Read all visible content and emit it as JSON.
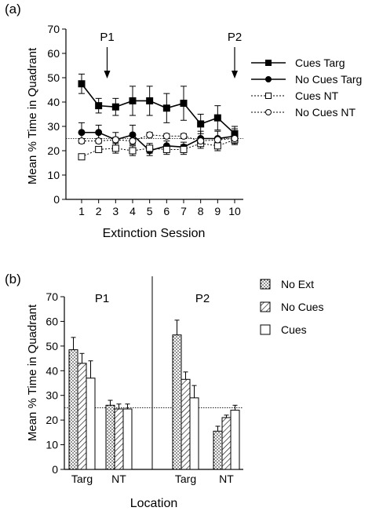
{
  "chart_data": [
    {
      "panel_label": "(a)",
      "type": "line",
      "xlabel": "Extinction Session",
      "ylabel": "Mean % Time in Quadrant",
      "x": [
        1,
        2,
        3,
        4,
        5,
        6,
        7,
        8,
        9,
        10
      ],
      "xlim": [
        1,
        10
      ],
      "ylim": [
        0,
        70
      ],
      "yticks": [
        0,
        10,
        20,
        30,
        40,
        50,
        60,
        70
      ],
      "reference_line": 25,
      "annotations": [
        {
          "label": "P1",
          "x": 2.5
        },
        {
          "label": "P2",
          "x": 10
        }
      ],
      "legend_position": "right",
      "series": [
        {
          "name": "Cues Targ",
          "line": "solid",
          "marker": "filled-square",
          "values": [
            47.5,
            38.5,
            38,
            40.5,
            40.5,
            37.5,
            39.5,
            31,
            33.5,
            27
          ],
          "errors": [
            4,
            3,
            3.5,
            6,
            6,
            6,
            7,
            4,
            5,
            3
          ]
        },
        {
          "name": "No Cues Targ",
          "line": "solid",
          "marker": "filled-circle",
          "values": [
            27.5,
            27.5,
            24.5,
            26.5,
            20,
            22,
            21.5,
            25,
            25,
            26
          ],
          "errors": [
            4,
            3,
            3,
            4,
            2,
            2,
            2,
            3,
            3,
            3
          ]
        },
        {
          "name": "Cues NT",
          "line": "dotted",
          "marker": "open-square",
          "values": [
            17.5,
            20.5,
            21,
            20,
            21,
            20.5,
            20.5,
            23,
            22,
            24.5
          ],
          "errors": [
            1,
            1,
            2,
            2,
            2,
            2,
            2,
            2,
            2,
            2
          ]
        },
        {
          "name": "No Cues NT",
          "line": "dotted",
          "marker": "open-circle",
          "values": [
            24,
            24,
            24.5,
            24,
            26.5,
            26,
            26,
            24,
            24.5,
            25
          ],
          "errors": [
            1,
            1,
            1,
            1,
            1,
            1,
            1,
            1,
            1,
            1
          ]
        }
      ]
    },
    {
      "panel_label": "(b)",
      "type": "bar",
      "xlabel": "Location",
      "ylabel": "Mean % Time in Quadrant",
      "ylim": [
        0,
        70
      ],
      "yticks": [
        0,
        10,
        20,
        30,
        40,
        50,
        60,
        70
      ],
      "reference_line": 25,
      "legend_position": "top-right",
      "groups": [
        {
          "title": "P1",
          "categories": [
            "Targ",
            "NT"
          ]
        },
        {
          "title": "P2",
          "categories": [
            "Targ",
            "NT"
          ]
        }
      ],
      "series": [
        {
          "name": "No Ext",
          "fill": "dotted",
          "values": [
            48.5,
            26,
            54.5,
            15.5
          ],
          "errors": [
            5,
            2,
            6,
            2
          ]
        },
        {
          "name": "No Cues",
          "fill": "hatched",
          "values": [
            43,
            24.5,
            36.5,
            21
          ],
          "errors": [
            4,
            2,
            3,
            1
          ]
        },
        {
          "name": "Cues",
          "fill": "open",
          "values": [
            37,
            24.5,
            29,
            24
          ],
          "errors": [
            7,
            2,
            5,
            2
          ]
        }
      ]
    }
  ]
}
